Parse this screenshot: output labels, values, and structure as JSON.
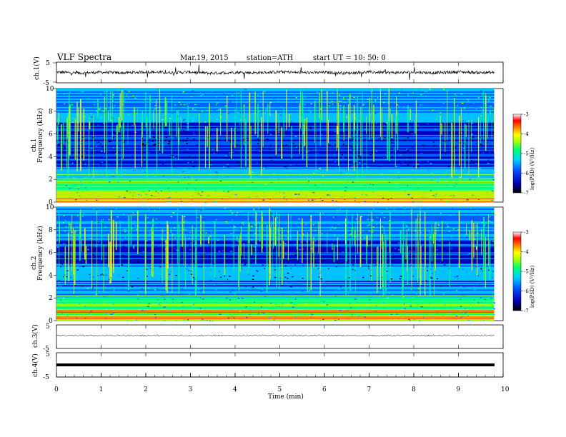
{
  "header": {
    "title": "VLF  Spectra",
    "date": "Mar.19, 2015",
    "station": "station=ATH",
    "start": "start  UT  =    10: 50: 0"
  },
  "chart_data": [
    {
      "type": "line",
      "panel": "ch1-waveform",
      "ylabel": "ch.1(V)",
      "yticks": [
        "5",
        "-5"
      ],
      "ylim": [
        -5,
        5
      ],
      "x": [
        0,
        0.5,
        1,
        1.5,
        2,
        2.5,
        3,
        3.5,
        4,
        4.5,
        5,
        5.5,
        6,
        6.5,
        7,
        7.5,
        8,
        8.5,
        9,
        9.5,
        9.8
      ],
      "y": [
        0.2,
        -0.3,
        0.1,
        -0.2,
        0.3,
        -0.1,
        0.2,
        -0.4,
        0.1,
        -0.2,
        0.3,
        -0.1,
        0.0,
        -0.3,
        0.2,
        -0.1,
        0.1,
        -0.2,
        0.3,
        -0.1,
        0.0
      ]
    },
    {
      "type": "heatmap",
      "panel": "ch1-spectrogram",
      "ylabel": "ch.1",
      "ylabel2": "Frequency  (kHz)",
      "yticks": [
        "0",
        "2",
        "4",
        "6",
        "8",
        "10"
      ],
      "ylim": [
        0,
        10
      ],
      "colorbar": {
        "label": "log(PSD) (V²/Hz)",
        "ticks": [
          "-3",
          "-4",
          "-5",
          "-6",
          "-7"
        ],
        "range": [
          -7,
          -3
        ]
      }
    },
    {
      "type": "heatmap",
      "panel": "ch2-spectrogram",
      "ylabel": "ch.2",
      "ylabel2": "Frequency  (kHz)",
      "yticks": [
        "0",
        "2",
        "4",
        "6",
        "8",
        "10"
      ],
      "ylim": [
        0,
        10
      ],
      "colorbar": {
        "label": "log(PSD) (V²/Hz)",
        "ticks": [
          "-3",
          "-4",
          "-5",
          "-6",
          "-7"
        ],
        "range": [
          -7,
          -3
        ]
      }
    },
    {
      "type": "line",
      "panel": "ch3-waveform",
      "ylabel": "ch.3(V)",
      "yticks": [
        "5",
        "-5"
      ],
      "ylim": [
        -5,
        5
      ],
      "x": [
        0,
        9.8
      ],
      "y": [
        0,
        0
      ]
    },
    {
      "type": "line",
      "panel": "ch4-waveform",
      "ylabel": "ch.4(V)",
      "yticks": [
        "5",
        "-5"
      ],
      "ylim": [
        -5,
        5
      ],
      "x": [
        0,
        9.8
      ],
      "y": [
        0,
        0
      ]
    }
  ],
  "xaxis": {
    "label": "Time  (min)",
    "ticks": [
      "0",
      "1",
      "2",
      "3",
      "4",
      "5",
      "6",
      "7",
      "8",
      "9",
      "10"
    ],
    "range": [
      0,
      10
    ]
  },
  "colors": {
    "cmap": [
      "#000000",
      "#0000c0",
      "#0060ff",
      "#00c0ff",
      "#00ff80",
      "#a0ff00",
      "#ffff00",
      "#ff8000",
      "#ff0000",
      "#ffffff"
    ]
  }
}
